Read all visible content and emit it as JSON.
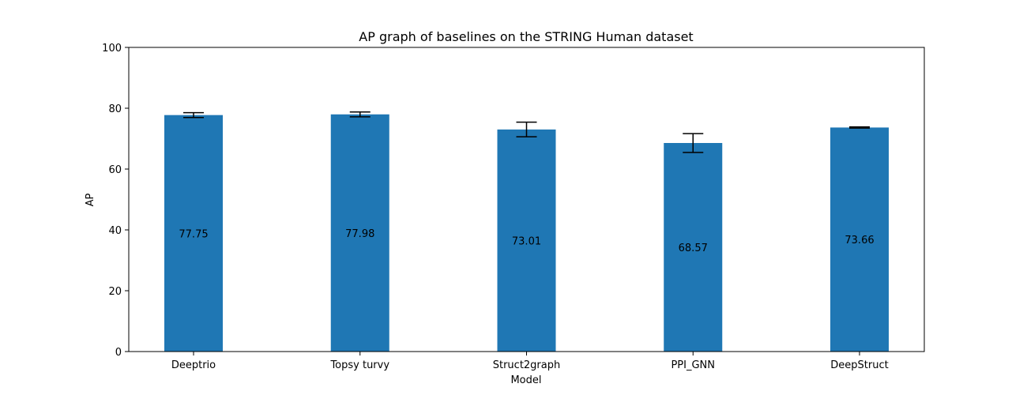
{
  "chart_data": {
    "type": "bar",
    "title": "AP graph of baselines on the STRING Human dataset",
    "xlabel": "Model",
    "ylabel": "AP",
    "categories": [
      "Deeptrio",
      "Topsy turvy",
      "Struct2graph",
      "PPI_GNN",
      "DeepStruct"
    ],
    "values": [
      77.75,
      77.98,
      73.01,
      68.57,
      73.66
    ],
    "value_labels": [
      "77.75",
      "77.98",
      "73.01",
      "68.57",
      "73.66"
    ],
    "error": [
      0.8,
      0.8,
      2.4,
      3.1,
      0.2
    ],
    "ylim": [
      0,
      100
    ],
    "yticks": [
      0,
      20,
      40,
      60,
      80,
      100
    ],
    "ytick_labels": [
      "0",
      "20",
      "40",
      "60",
      "80",
      "100"
    ],
    "grid": false,
    "bar_color": "#1f77b4",
    "errorbar_color": "#000000"
  }
}
